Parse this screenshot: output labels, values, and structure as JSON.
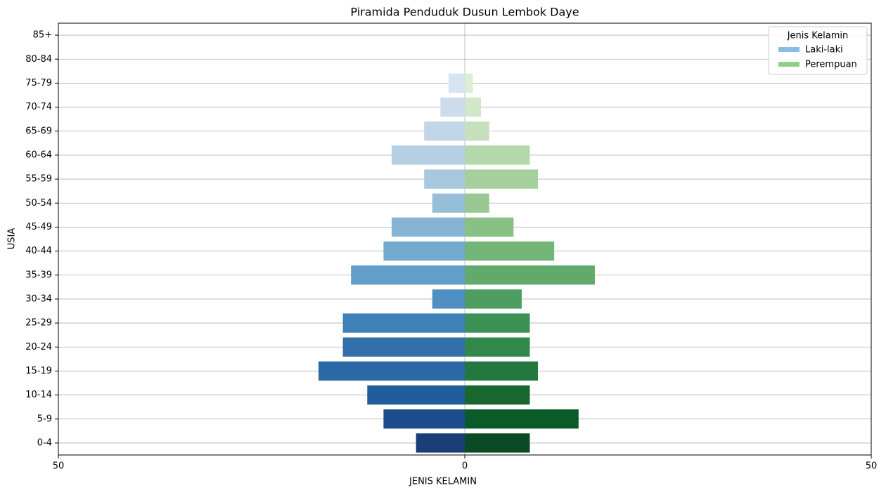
{
  "chart_data": {
    "type": "pyramid",
    "title": "Piramida Penduduk Dusun Lembok Daye",
    "x_label": "JENIS KELAMIN",
    "y_label": "USIA",
    "categories": [
      "0-4",
      "5-9",
      "10-14",
      "15-19",
      "20-24",
      "25-29",
      "30-34",
      "35-39",
      "40-44",
      "45-49",
      "50-54",
      "55-59",
      "60-64",
      "65-69",
      "70-74",
      "75-79",
      "80-84",
      "85+"
    ],
    "series": [
      {
        "name": "Laki-laki",
        "color": "#88bde6",
        "values": [
          -6,
          -10,
          -12,
          -18,
          -15,
          -15,
          -4,
          -14,
          -10,
          -9,
          -4,
          -5,
          -9,
          -5,
          -3,
          -2,
          0,
          0
        ],
        "colors": [
          "#1a3f78",
          "#1c4c8c",
          "#225b9b",
          "#2a68a6",
          "#336fab",
          "#3f80b8",
          "#4f8fc1",
          "#629ec9",
          "#73a8cf",
          "#87b4d5",
          "#97bed9",
          "#a7c8de",
          "#b5d0e2",
          "#c2d6e7",
          "#ccdcec",
          "#d6e3f0",
          "#e1eaf4",
          "#ebf1f8"
        ]
      },
      {
        "name": "Perempuan",
        "color": "#8ed08b",
        "values": [
          8,
          14,
          8,
          9,
          8,
          8,
          7,
          16,
          11,
          6,
          3,
          9,
          8,
          3,
          2,
          1,
          0,
          0
        ],
        "colors": [
          "#0b4a22",
          "#0b5a2a",
          "#17672f",
          "#237840",
          "#32884b",
          "#3c9254",
          "#4c9d5f",
          "#62aa6b",
          "#72b577",
          "#89c083",
          "#98c792",
          "#a6cf9e",
          "#b5d8ab",
          "#c5e0bb",
          "#d1e7c8",
          "#dcedd6",
          "#e6f3e0",
          "#eff8eb"
        ]
      }
    ],
    "xlim": [
      -50,
      50
    ],
    "xticks": [
      {
        "value": -50,
        "label": "50"
      },
      0,
      50
    ],
    "grid": true,
    "legend_title": "Jenis Kelamin",
    "legend_position": "upper-right"
  }
}
